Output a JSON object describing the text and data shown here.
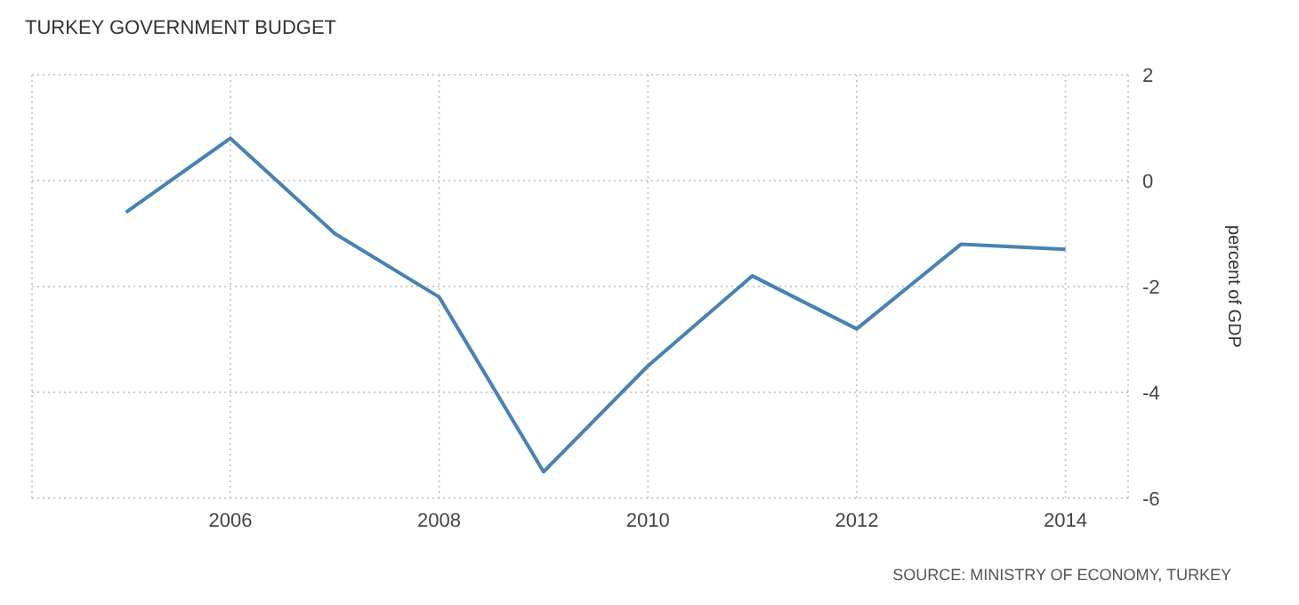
{
  "chart_data": {
    "type": "line",
    "title": "TURKEY GOVERNMENT BUDGET",
    "ylabel": "percent of GDP",
    "annotations": [
      "SOURCE: MINISTRY OF ECONOMY, TURKEY"
    ],
    "x": [
      2005,
      2006,
      2007,
      2008,
      2009,
      2010,
      2011,
      2012,
      2013,
      2014
    ],
    "series": [
      {
        "color": "#4682b4",
        "values": [
          -0.6,
          0.8,
          -1.0,
          -2.2,
          -5.5,
          -3.5,
          -1.8,
          -2.8,
          -1.2,
          -1.3
        ]
      }
    ],
    "xlim": [
      2004.1,
      2014.6
    ],
    "xticks": [
      2006,
      2008,
      2010,
      2012,
      2014
    ],
    "ylim": [
      -6,
      2
    ],
    "yticks": [
      -6,
      -4,
      -2,
      0,
      2
    ],
    "grid": true,
    "marker": "none",
    "line_style": "solid"
  }
}
